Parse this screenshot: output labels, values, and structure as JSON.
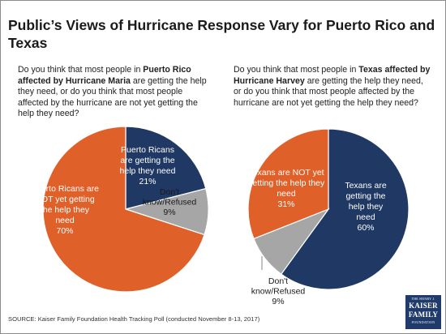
{
  "title": "Public’s Views of Hurricane Response Vary for Puerto Rico and Texas",
  "questions": {
    "left": {
      "pre": "Do you think that most people in ",
      "bold": "Puerto Rico affected by Hurricane Maria",
      "post": " are getting the help they need, or do you think that most people affected by the hurricane are not yet getting the help they need?"
    },
    "right": {
      "pre": "Do you think that most people in ",
      "bold": "Texas affected by Hurricane Harvey",
      "post": " are getting the help they need, or do you think that most people affected by the hurricane are not yet getting the help they need?"
    }
  },
  "source": "SOURCE: Kaiser Family Foundation Health Tracking Poll (conducted November 8-13, 2017)",
  "logo": {
    "line0": "THE HENRY J.",
    "line1": "KAISER",
    "line2": "FAMILY",
    "line3": "FOUNDATION"
  },
  "colors": {
    "navy": "#1f3864",
    "orange": "#e0602a",
    "gray": "#a6a6a6"
  },
  "chart_data": [
    {
      "type": "pie",
      "slices": [
        {
          "label_lines": [
            "Puerto Ricans",
            "are getting the",
            "help they need",
            "21%"
          ],
          "value": 21,
          "color": "#1f3864"
        },
        {
          "label_lines": [
            "Don't",
            "know/Refused",
            "9%"
          ],
          "value": 9,
          "color": "#a6a6a6"
        },
        {
          "label_lines": [
            "Puerto Ricans are",
            "NOT yet getting",
            "the help they",
            "need",
            "70%"
          ],
          "value": 70,
          "color": "#e0602a"
        }
      ]
    },
    {
      "type": "pie",
      "slices": [
        {
          "label_lines": [
            "Texans are",
            "getting the",
            "help they",
            "need",
            "60%"
          ],
          "value": 60,
          "color": "#1f3864"
        },
        {
          "label_lines": [
            "Don't",
            "know/Refused",
            "9%"
          ],
          "value": 9,
          "color": "#a6a6a6"
        },
        {
          "label_lines": [
            "Texans are NOT yet",
            "getting the help they",
            "need",
            "31%"
          ],
          "value": 31,
          "color": "#e0602a"
        }
      ]
    }
  ]
}
